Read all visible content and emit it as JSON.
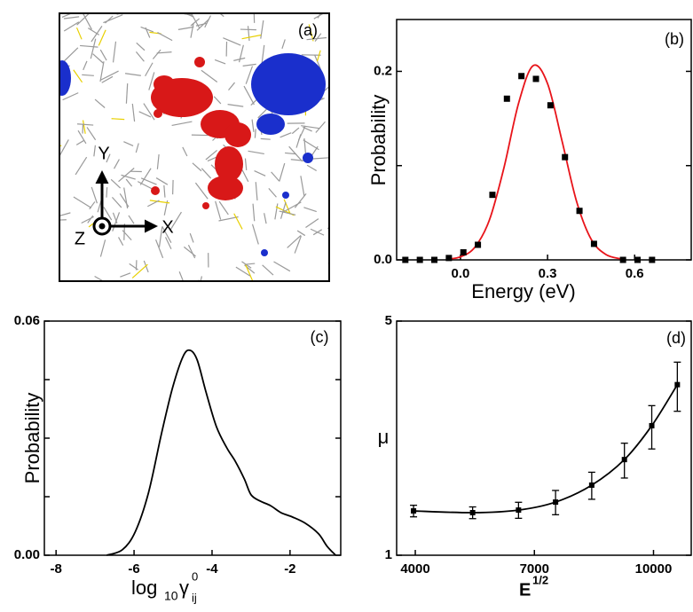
{
  "image_panel": {
    "label": "(a)",
    "axis_labels": {
      "x": "X",
      "y": "Y",
      "z": "Z"
    }
  },
  "chart_data": [
    {
      "type": "scatter",
      "annotation": "(b)",
      "xlabel": "Energy (eV)",
      "ylabel": "Probability",
      "xlim": [
        -0.22,
        0.795
      ],
      "ylim": [
        0,
        0.255
      ],
      "xticks": [
        {
          "value": 0,
          "label": "0.0"
        },
        0.3,
        0.6
      ],
      "yticks": [
        {
          "value": 0,
          "label": "0.0"
        },
        0.2
      ],
      "minor_yticks": [
        0.1
      ],
      "points": {
        "color": "#000000",
        "x": [
          -0.19,
          -0.14,
          -0.09,
          -0.04,
          0.01,
          0.06,
          0.11,
          0.16,
          0.21,
          0.26,
          0.31,
          0.36,
          0.41,
          0.46,
          0.56,
          0.61,
          0.66
        ],
        "values": [
          0,
          0,
          0,
          0.002,
          0.008,
          0.016,
          0.069,
          0.171,
          0.195,
          0.192,
          0.164,
          0.109,
          0.052,
          0.017,
          0,
          0,
          0
        ]
      },
      "fit": {
        "color": "#e8141a",
        "x": [
          -0.05,
          0,
          0.05,
          0.1,
          0.15,
          0.2,
          0.25,
          0.3,
          0.35,
          0.4,
          0.45,
          0.5,
          0.55
        ],
        "values": [
          0.0006,
          0.0032,
          0.0136,
          0.0426,
          0.098,
          0.166,
          0.206,
          0.187,
          0.126,
          0.062,
          0.022,
          0.0059,
          0.0012
        ]
      }
    },
    {
      "type": "line",
      "annotation": "(c)",
      "xlabel_parts": [
        "log",
        "10",
        "γ",
        "0",
        "ij"
      ],
      "ylabel": "Probability",
      "xlim": [
        -8.3,
        -0.7
      ],
      "ylim": [
        0,
        0.06
      ],
      "xticks": [
        -8,
        -6,
        -4,
        -2
      ],
      "yticks": [
        {
          "value": 0,
          "label": "0.00"
        },
        0.06
      ],
      "minor_yticks": [
        0.015,
        0.03,
        0.045
      ],
      "color": "#000000",
      "x": [
        -6.7,
        -6.3,
        -5.97,
        -5.63,
        -5.3,
        -5.01,
        -4.74,
        -4.56,
        -4.38,
        -4.16,
        -3.89,
        -3.62,
        -3.4,
        -3.17,
        -3.0,
        -2.77,
        -2.5,
        -2.23,
        -1.94,
        -1.61,
        -1.27,
        -1.05,
        -0.83
      ],
      "values": [
        0,
        0.0014,
        0.006,
        0.016,
        0.031,
        0.043,
        0.051,
        0.0525,
        0.05,
        0.042,
        0.033,
        0.0275,
        0.024,
        0.0195,
        0.0155,
        0.0139,
        0.0127,
        0.0109,
        0.0098,
        0.0082,
        0.0055,
        0.0023,
        0
      ]
    },
    {
      "type": "errorbar",
      "annotation": "(d)",
      "xlabel_parts": [
        "E",
        "1/2"
      ],
      "ylabel": "μ",
      "xlim": [
        3530,
        10950
      ],
      "ylim": [
        1,
        5
      ],
      "ylog": true,
      "xticks": [
        4000,
        7000,
        10000
      ],
      "yticks": [
        1,
        5
      ],
      "color": "#000000",
      "x": [
        3956,
        5444,
        6600,
        7533,
        8444,
        9267,
        9956,
        10600
      ],
      "values": [
        1.356,
        1.34,
        1.364,
        1.441,
        1.619,
        1.93,
        2.436,
        3.23
      ],
      "errors": [
        0.054,
        0.054,
        0.075,
        0.12,
        0.15,
        0.23,
        0.36,
        0.54
      ]
    }
  ]
}
